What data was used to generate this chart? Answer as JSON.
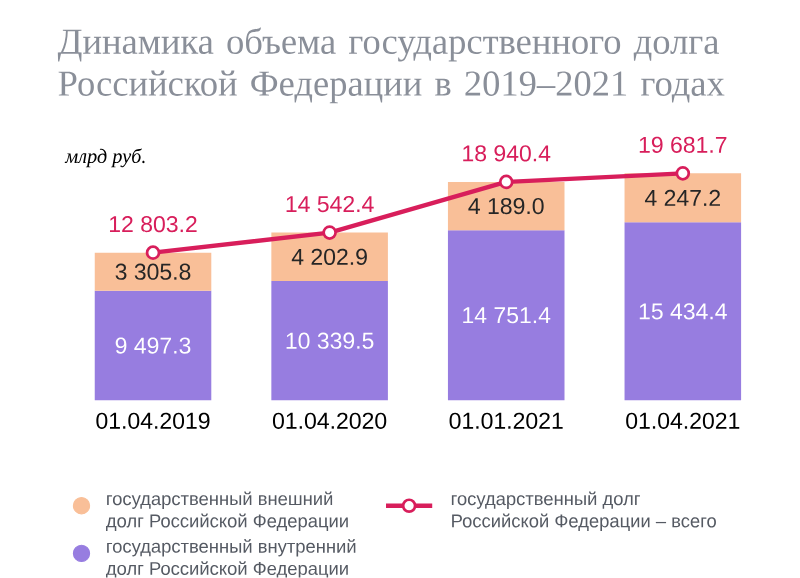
{
  "chart_data": {
    "type": "bar",
    "stacked": true,
    "title": "Динамика объема государственного долга Российской Федерации в 2019–2021 годах",
    "ylabel": "млрд руб.",
    "categories": [
      "01.04.2019",
      "01.04.2020",
      "01.01.2021",
      "01.04.2021"
    ],
    "legend": "bottom",
    "marker": "circle",
    "line_style": "solid",
    "series": [
      {
        "name": "государственный внутренний долг Российской Федерации",
        "color": "#977de0",
        "values": [
          9497.3,
          10339.5,
          14751.4,
          15434.4
        ],
        "value_labels": [
          "9 497.3",
          "10 339.5",
          "14 751.4",
          "15 434.4"
        ]
      },
      {
        "name": "государственный внешний долг Российской Федерации",
        "color": "#f9bf98",
        "values": [
          3305.8,
          4202.9,
          4189.0,
          4247.2
        ],
        "value_labels": [
          "3 305.8",
          "4 202.9",
          "4 189.0",
          "4 247.2"
        ]
      },
      {
        "name": "государственный долг Российской Федерации – всего",
        "type": "line",
        "color": "#d81e5b",
        "values": [
          12803.2,
          14542.4,
          18940.4,
          19681.7
        ],
        "value_labels": [
          "12 803.2",
          "14 542.4",
          "18 940.4",
          "19 681.7"
        ]
      }
    ]
  }
}
